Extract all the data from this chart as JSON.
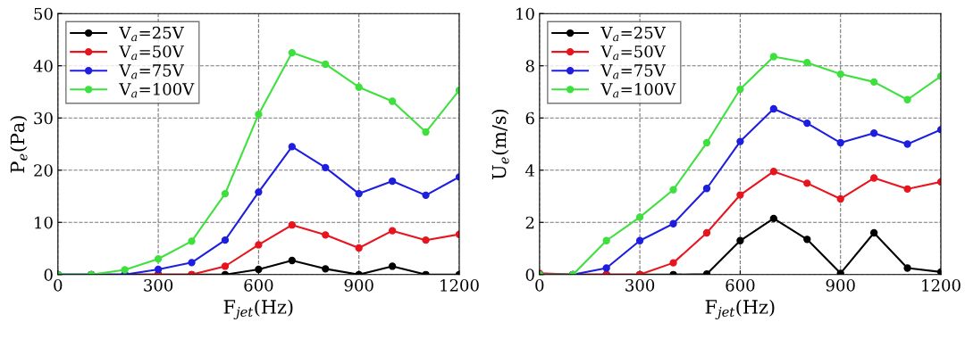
{
  "chart_data": [
    {
      "type": "line",
      "xlabel": "F$_{jet}$(Hz)",
      "ylabel": "P$_{e}$(Pa)",
      "x": [
        0,
        100,
        200,
        300,
        400,
        500,
        600,
        700,
        800,
        900,
        1000,
        1100,
        1200
      ],
      "xlim": [
        0,
        1200
      ],
      "xticks": [
        0,
        300,
        600,
        900,
        1200
      ],
      "ylim": [
        0,
        50
      ],
      "yticks": [
        0,
        10,
        20,
        30,
        40,
        50
      ],
      "grid": true,
      "legend": "top left",
      "marker": "circle",
      "line_style": "solid",
      "series": [
        {
          "name": "V$_{a}$=25V",
          "color": "#000000",
          "values": [
            0,
            0,
            0,
            0,
            0,
            0,
            1.0,
            2.7,
            1.1,
            0,
            1.6,
            0,
            0
          ]
        },
        {
          "name": "V$_{a}$=50V",
          "color": "#e8141e",
          "values": [
            null,
            null,
            0,
            0,
            0,
            1.6,
            5.7,
            9.5,
            7.6,
            5.1,
            8.4,
            6.6,
            7.7
          ]
        },
        {
          "name": "V$_{a}$=75V",
          "color": "#1e1ee0",
          "values": [
            0,
            0,
            0,
            1.0,
            2.3,
            6.6,
            15.8,
            24.5,
            20.5,
            15.5,
            17.9,
            15.2,
            18.7
          ]
        },
        {
          "name": "V$_{a}$=100V",
          "color": "#3ee03e",
          "values": [
            0,
            0,
            0.9,
            3.0,
            6.4,
            15.5,
            30.7,
            42.5,
            40.3,
            35.9,
            33.2,
            27.3,
            35.3
          ]
        }
      ]
    },
    {
      "type": "line",
      "xlabel": "F$_{jet}$(Hz)",
      "ylabel": "U$_{e}$(m/s)",
      "x": [
        0,
        100,
        200,
        300,
        400,
        500,
        600,
        700,
        800,
        900,
        1000,
        1100,
        1200
      ],
      "xlim": [
        0,
        1200
      ],
      "xticks": [
        0,
        300,
        600,
        900,
        1200
      ],
      "ylim": [
        0,
        10
      ],
      "yticks": [
        0,
        2,
        4,
        6,
        8,
        10
      ],
      "grid": true,
      "legend": "top left",
      "marker": "circle",
      "line_style": "solid",
      "series": [
        {
          "name": "V$_{a}$=25V",
          "color": "#000000",
          "values": [
            0,
            0,
            0,
            0,
            0,
            0.02,
            1.3,
            2.15,
            1.35,
            0.05,
            1.6,
            0.25,
            0.1
          ]
        },
        {
          "name": "V$_{a}$=50V",
          "color": "#e8141e",
          "values": [
            0.05,
            0,
            0,
            0,
            0.45,
            1.6,
            3.05,
            3.95,
            3.5,
            2.9,
            3.7,
            3.28,
            3.55
          ]
        },
        {
          "name": "V$_{a}$=75V",
          "color": "#1e1ee0",
          "values": [
            0,
            0,
            0.25,
            1.3,
            1.95,
            3.3,
            5.1,
            6.35,
            5.8,
            5.05,
            5.42,
            5.0,
            5.55
          ]
        },
        {
          "name": "V$_{a}$=100V",
          "color": "#3ee03e",
          "values": [
            0,
            0,
            1.3,
            2.2,
            3.25,
            5.05,
            7.1,
            8.35,
            8.12,
            7.68,
            7.38,
            6.7,
            7.6
          ]
        }
      ]
    }
  ]
}
